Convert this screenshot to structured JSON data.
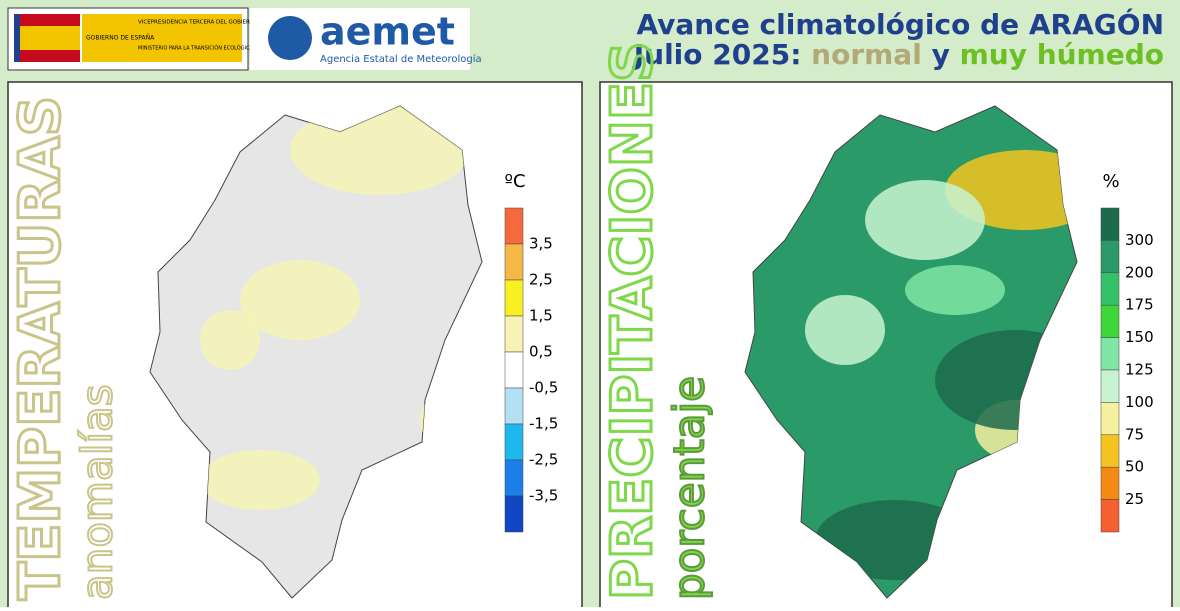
{
  "header": {
    "gov": "GOBIERNO DE ESPAÑA",
    "vice": "VICEPRESIDENCIA TERCERA DEL GOBIERNO",
    "ministry": "MINISTERIO PARA LA TRANSICIÓN ECOLÓGICA Y EL RETO DEMOGRÁFICO",
    "brand": "aemet",
    "agency": "Agencia Estatal de Meteorología",
    "title": "Avance climatológico de ARAGÓN",
    "subtitle": [
      {
        "text": "Julio 2025:",
        "color": "#1f3f8f"
      },
      {
        "text": "normal",
        "color": "#b3a878"
      },
      {
        "text": "y",
        "color": "#1f3f8f"
      },
      {
        "text": "muy húmedo",
        "color": "#6cc024"
      }
    ]
  },
  "panels": [
    {
      "title": "TEMPERATURAS",
      "subtitle": "anomalías",
      "title_color": "#c9c58a",
      "unit": "ºC",
      "labels": [
        "3,5",
        "2,5",
        "1,5",
        "0,5",
        "-0,5",
        "-1,5",
        "-2,5",
        "-3,5"
      ],
      "colors": [
        "#f46a3c",
        "#f5b847",
        "#f8f020",
        "#f6f3b4",
        "#ffffff",
        "#b3e0f2",
        "#1fb8ee",
        "#1c7fe8",
        "#1045c4"
      ]
    },
    {
      "title": "PRECIPITACIONES",
      "subtitle": "porcentaje",
      "title_color": "#7ed84a",
      "unit": "%",
      "labels": [
        300,
        200,
        175,
        150,
        125,
        100,
        75,
        50,
        25
      ],
      "colors": [
        "#1c6b4c",
        "#2a9a68",
        "#35c06a",
        "#3fd63a",
        "#7fe6a6",
        "#c8f3d0",
        "#f4f0a0",
        "#f4c420",
        "#f48a14",
        "#f46030"
      ]
    }
  ]
}
